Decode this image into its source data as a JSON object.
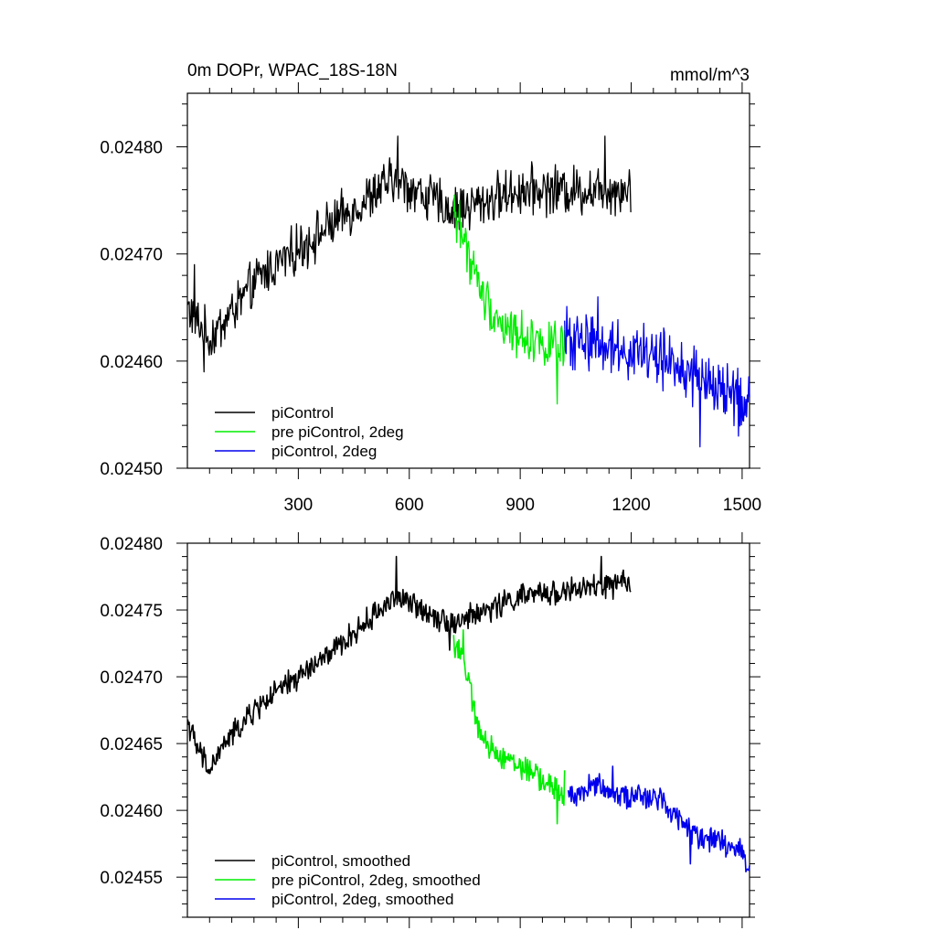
{
  "chart_data": [
    {
      "type": "line",
      "title": "0m DOPr, WPAC_18S-18N",
      "units": "mmol/m^3",
      "xlabel": "",
      "ylabel": "",
      "xlim": [
        0,
        1520
      ],
      "ylim": [
        0.0245,
        0.02485
      ],
      "x_ticks": [
        300,
        600,
        900,
        1200,
        1500
      ],
      "x_tick_labels": [
        "300",
        "600",
        "900",
        "1200",
        "1500"
      ],
      "y_ticks": [
        0.0245,
        0.0246,
        0.0247,
        0.0248
      ],
      "y_tick_labels": [
        "0.02450",
        "0.02460",
        "0.02470",
        "0.02480"
      ],
      "legend_position": "bottom-left",
      "grid": false,
      "series": [
        {
          "name": "piControl",
          "color": "#000000",
          "x_range": [
            1,
            1200
          ],
          "anchor_x": [
            1,
            60,
            200,
            400,
            560,
            720,
            900,
            1200
          ],
          "anchor_y": [
            0.02465,
            0.02462,
            0.02468,
            0.02473,
            0.02477,
            0.02474,
            0.02476,
            0.02476
          ],
          "noise": 1.8e-05,
          "spikes": [
            [
              20,
              0.02469
            ],
            [
              45,
              0.02459
            ],
            [
              570,
              0.02481
            ],
            [
              1130,
              0.02481
            ],
            [
              1180,
              0.02475
            ]
          ]
        },
        {
          "name": "pre piControl, 2deg",
          "color": "#00ee00",
          "x_range": [
            720,
            1020
          ],
          "anchor_x": [
            720,
            760,
            800,
            860,
            940,
            1020
          ],
          "anchor_y": [
            0.02474,
            0.0247,
            0.02466,
            0.02463,
            0.02462,
            0.02461
          ],
          "noise": 1.8e-05,
          "spikes": [
            [
              735,
              0.02475
            ],
            [
              1000,
              0.02456
            ]
          ]
        },
        {
          "name": "piControl, 2deg",
          "color": "#0000ee",
          "x_range": [
            1020,
            1520
          ],
          "anchor_x": [
            1020,
            1100,
            1200,
            1300,
            1400,
            1520
          ],
          "anchor_y": [
            0.02462,
            0.02462,
            0.02461,
            0.0246,
            0.02458,
            0.02456
          ],
          "noise": 2.2e-05,
          "spikes": [
            [
              1110,
              0.02466
            ],
            [
              1385,
              0.02452
            ],
            [
              1490,
              0.02453
            ]
          ]
        }
      ]
    },
    {
      "type": "line",
      "title": "",
      "xlabel": "",
      "ylabel": "",
      "xlim": [
        0,
        1520
      ],
      "ylim": [
        0.02452,
        0.0248
      ],
      "x_ticks": [
        300,
        600,
        900,
        1200,
        1500
      ],
      "x_tick_labels": [],
      "y_ticks": [
        0.02455,
        0.0246,
        0.02465,
        0.0247,
        0.02475,
        0.0248
      ],
      "y_tick_labels": [
        "0.02455",
        "0.02460",
        "0.02465",
        "0.02470",
        "0.02475",
        "0.02480"
      ],
      "legend_position": "bottom-left",
      "grid": false,
      "series": [
        {
          "name": "piControl, smoothed",
          "color": "#000000",
          "x_range": [
            1,
            1200
          ],
          "anchor_x": [
            1,
            20,
            60,
            100,
            200,
            400,
            560,
            640,
            720,
            900,
            1200
          ],
          "anchor_y": [
            0.024668,
            0.02465,
            0.02463,
            0.02465,
            0.02468,
            0.02472,
            0.02476,
            0.02475,
            0.02474,
            0.02476,
            0.02477
          ],
          "noise": 7.5e-06,
          "spikes": [
            [
              565,
              0.02479
            ],
            [
              1120,
              0.02479
            ],
            [
              710,
              0.02472
            ]
          ]
        },
        {
          "name": "pre piControl, 2deg, smoothed",
          "color": "#00ee00",
          "x_range": [
            720,
            1020
          ],
          "anchor_x": [
            720,
            740,
            780,
            800,
            860,
            950,
            1020
          ],
          "anchor_y": [
            0.024725,
            0.02472,
            0.02467,
            0.02465,
            0.02464,
            0.024625,
            0.02461
          ],
          "noise": 7.5e-06,
          "spikes": [
            [
              745,
              0.024735
            ],
            [
              1000,
              0.02459
            ],
            [
              1020,
              0.02463
            ]
          ]
        },
        {
          "name": "piControl, 2deg, smoothed",
          "color": "#0000ee",
          "x_range": [
            1030,
            1520
          ],
          "anchor_x": [
            1030,
            1100,
            1200,
            1280,
            1360,
            1440,
            1500,
            1520
          ],
          "anchor_y": [
            0.02461,
            0.02462,
            0.02461,
            0.02461,
            0.024585,
            0.024575,
            0.02457,
            0.024555
          ],
          "noise": 7.5e-06,
          "spikes": [
            [
              1150,
              0.024633
            ],
            [
              1360,
              0.02456
            ]
          ]
        }
      ]
    }
  ]
}
